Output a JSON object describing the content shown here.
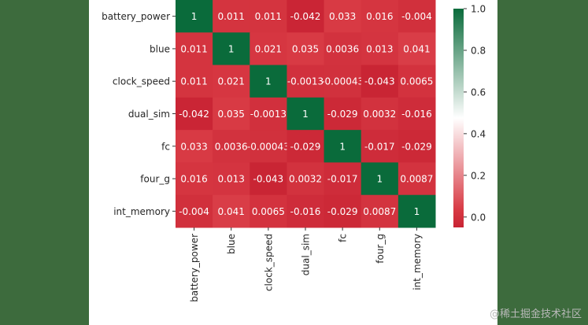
{
  "chart_data": {
    "type": "heatmap",
    "labels": [
      "battery_power",
      "blue",
      "clock_speed",
      "dual_sim",
      "fc",
      "four_g",
      "int_memory"
    ],
    "annotations": [
      [
        "1",
        "0.011",
        "0.011",
        "-0.042",
        "0.033",
        "0.016",
        "-0.004"
      ],
      [
        "0.011",
        "1",
        "0.021",
        "0.035",
        "0.0036",
        "0.013",
        "0.041"
      ],
      [
        "0.011",
        "0.021",
        "1",
        "-0.0013",
        "-0.00043",
        "-0.043",
        "0.0065"
      ],
      [
        "-0.042",
        "0.035",
        "-0.0013",
        "1",
        "-0.029",
        "0.0032",
        "-0.016"
      ],
      [
        "0.033",
        "0.0036",
        "-0.00043",
        "-0.029",
        "1",
        "-0.017",
        "-0.029"
      ],
      [
        "0.016",
        "0.013",
        "-0.043",
        "0.0032",
        "-0.017",
        "1",
        "0.0087"
      ],
      [
        "-0.004",
        "0.041",
        "0.0065",
        "-0.016",
        "-0.029",
        "0.0087",
        "1"
      ]
    ],
    "values": [
      [
        1,
        0.011,
        0.011,
        -0.042,
        0.033,
        0.016,
        -0.004
      ],
      [
        0.011,
        1,
        0.021,
        0.035,
        0.0036,
        0.013,
        0.041
      ],
      [
        0.011,
        0.021,
        1,
        -0.0013,
        -0.00043,
        -0.043,
        0.0065
      ],
      [
        -0.042,
        0.035,
        -0.0013,
        1,
        -0.029,
        0.0032,
        -0.016
      ],
      [
        0.033,
        0.0036,
        -0.00043,
        -0.029,
        1,
        -0.017,
        -0.029
      ],
      [
        0.016,
        0.013,
        -0.043,
        0.0032,
        -0.017,
        1,
        0.0087
      ],
      [
        -0.004,
        0.041,
        0.0065,
        -0.016,
        -0.029,
        0.0087,
        1
      ]
    ],
    "colorbar": {
      "range": [
        -0.05,
        1.0
      ],
      "ticks": [
        0.0,
        0.2,
        0.4,
        0.6,
        0.8,
        1.0
      ],
      "tick_labels": [
        "0.0",
        "0.2",
        "0.4",
        "0.6",
        "0.8",
        "1.0"
      ],
      "colors": [
        "#c82333",
        "#d83a44",
        "#ffffff",
        "#0a6b3b"
      ]
    },
    "grid": false,
    "title": "",
    "xlabel": "",
    "ylabel": ""
  },
  "watermark": "@稀土掘金技术社区"
}
